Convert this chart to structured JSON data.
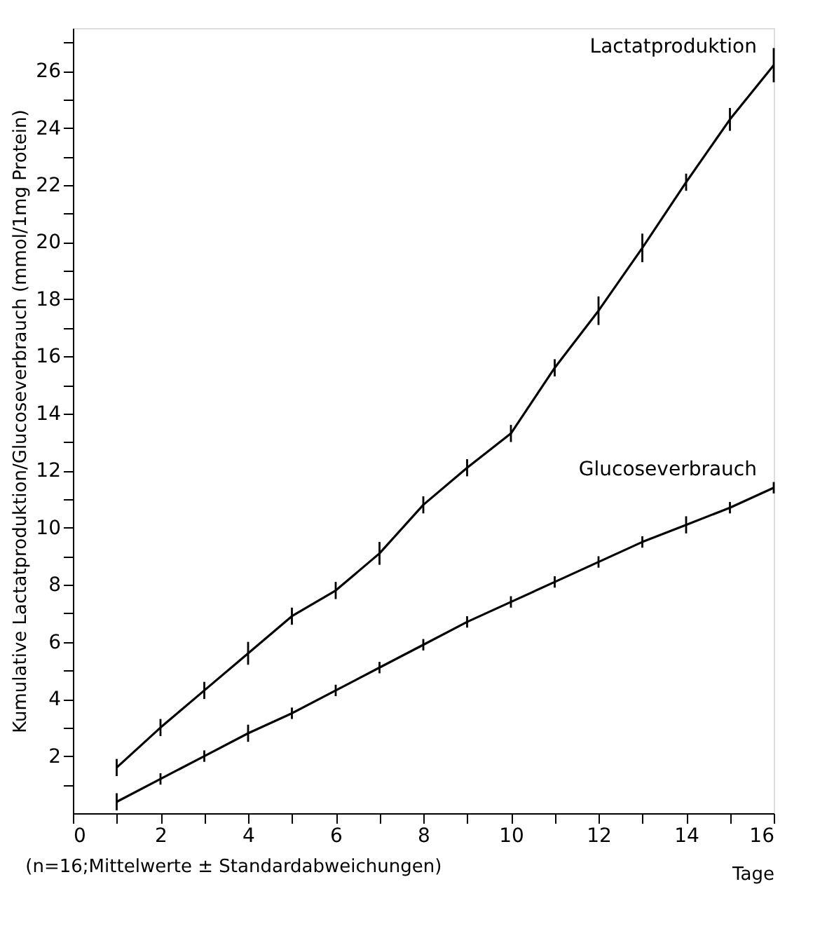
{
  "chart_data": {
    "type": "line",
    "xlabel": "Tage",
    "ylabel": "Kumulative Lactatproduktion/Glucoseverbrauch (mmol/1mg Protein)",
    "annotations": [
      "(n=16;Mittelwerte ± Standardabweichungen)"
    ],
    "x": [
      1,
      2,
      3,
      4,
      5,
      6,
      7,
      8,
      9,
      10,
      11,
      12,
      13,
      14,
      15,
      16
    ],
    "series": [
      {
        "name": "Lactatproduktion",
        "color": "#000000",
        "values": [
          1.6,
          3.0,
          4.3,
          5.6,
          6.9,
          7.8,
          9.1,
          10.8,
          12.1,
          13.3,
          15.6,
          17.6,
          19.8,
          22.1,
          24.3,
          26.2
        ],
        "errors": [
          0.3,
          0.3,
          0.3,
          0.4,
          0.3,
          0.3,
          0.4,
          0.3,
          0.3,
          0.3,
          0.3,
          0.5,
          0.5,
          0.3,
          0.4,
          0.6
        ]
      },
      {
        "name": "Glucoseverbrauch",
        "color": "#000000",
        "values": [
          0.4,
          1.2,
          2.0,
          2.8,
          3.5,
          4.3,
          5.1,
          5.9,
          6.7,
          7.4,
          8.1,
          8.8,
          9.5,
          10.1,
          10.7,
          11.4
        ],
        "errors": [
          0.3,
          0.2,
          0.2,
          0.3,
          0.2,
          0.2,
          0.2,
          0.2,
          0.2,
          0.2,
          0.2,
          0.2,
          0.2,
          0.3,
          0.2,
          0.2
        ]
      }
    ],
    "xlim": [
      0,
      16
    ],
    "ylim": [
      0,
      27.5
    ],
    "xticks": [
      0,
      {
        "value": 1,
        "label": null
      },
      2,
      {
        "value": 3,
        "label": null
      },
      4,
      {
        "value": 5,
        "label": null
      },
      6,
      {
        "value": 7,
        "label": null
      },
      8,
      {
        "value": 9,
        "label": null
      },
      10,
      {
        "value": 11,
        "label": null
      },
      12,
      {
        "value": 13,
        "label": null
      },
      14,
      {
        "value": 15,
        "label": null
      },
      16
    ],
    "yticks": [
      {
        "value": 1,
        "label": null
      },
      2,
      {
        "value": 3,
        "label": null
      },
      4,
      {
        "value": 5,
        "label": null
      },
      6,
      {
        "value": 7,
        "label": null
      },
      8,
      {
        "value": 9,
        "label": null
      },
      10,
      {
        "value": 11,
        "label": null
      },
      12,
      {
        "value": 13,
        "label": null
      },
      14,
      {
        "value": 15,
        "label": null
      },
      16,
      {
        "value": 17,
        "label": null
      },
      18,
      {
        "value": 19,
        "label": null
      },
      20,
      {
        "value": 21,
        "label": null
      },
      22,
      {
        "value": 23,
        "label": null
      },
      24,
      {
        "value": 25,
        "label": null
      },
      26,
      {
        "value": 27,
        "label": null
      }
    ],
    "grid": false,
    "marker": "none",
    "line_style": "solid"
  }
}
